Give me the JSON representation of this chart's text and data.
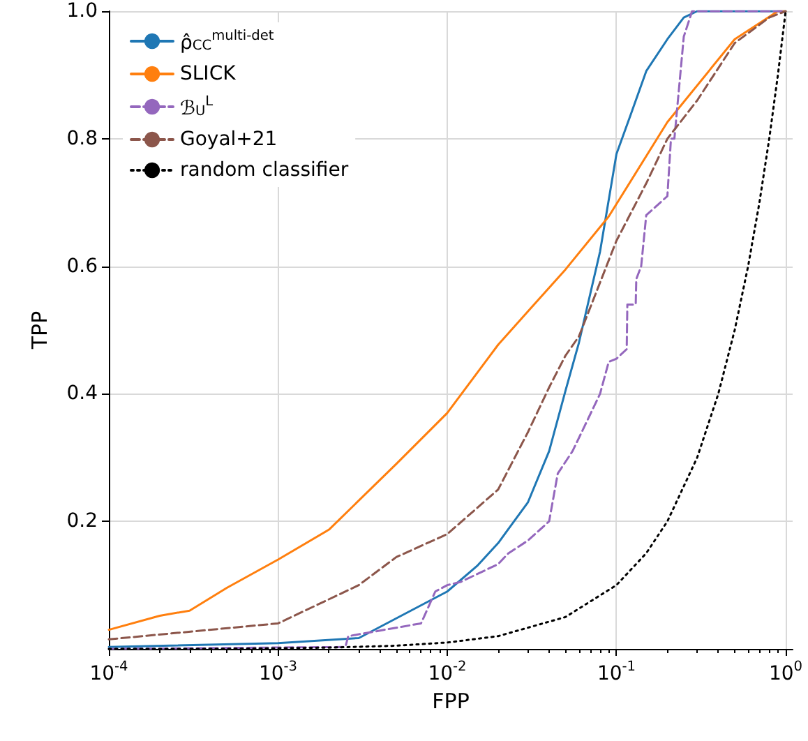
{
  "chart_data": {
    "type": "line",
    "xlabel": "FPP",
    "ylabel": "TPP",
    "log": "x",
    "grid": true,
    "legend": "top left",
    "marker": "none",
    "xlim": [
      0.0001,
      1.1
    ],
    "ylim": [
      0,
      1.0
    ],
    "xticks": [
      {
        "value": 0.0001,
        "label": "10$^{-4}$"
      },
      {
        "value": 0.001,
        "label": "10$^{-3}$"
      },
      {
        "value": 0.01,
        "label": "10$^{-2}$"
      },
      {
        "value": 0.1,
        "label": "10$^{-1}$"
      },
      {
        "value": 1,
        "label": "10$^{0}$"
      }
    ],
    "yticks": [
      0.2,
      0.4,
      0.6,
      0.8,
      {
        "value": 1,
        "label": "1.0"
      }
    ],
    "series": [
      {
        "name": "ρ̂$_{CC}$$^{multi-det}$",
        "color": "#1f77b4",
        "line_style": "solid",
        "x": [
          0.0001,
          0.001,
          0.003,
          0.01,
          0.015,
          0.02,
          0.03,
          0.04,
          0.05,
          0.06,
          0.08,
          0.1,
          0.12,
          0.15,
          0.2,
          0.25,
          0.3,
          1.0
        ],
        "values": [
          0.003,
          0.009,
          0.017,
          0.09,
          0.13,
          0.166,
          0.23,
          0.31,
          0.405,
          0.48,
          0.623,
          0.776,
          0.834,
          0.906,
          0.956,
          0.99,
          1.0,
          1.0
        ]
      },
      {
        "name": "SLICK",
        "color": "#ff7f0e",
        "line_style": "solid",
        "x": [
          0.0001,
          0.0002,
          0.0003,
          0.0005,
          0.001,
          0.002,
          0.005,
          0.01,
          0.02,
          0.05,
          0.09,
          0.2,
          0.5,
          0.9,
          1.0
        ],
        "values": [
          0.03,
          0.052,
          0.06,
          0.096,
          0.14,
          0.187,
          0.29,
          0.37,
          0.477,
          0.595,
          0.678,
          0.826,
          0.956,
          1.0,
          1.0
        ]
      },
      {
        "name": "ℬ$_{U}$$^{L}$",
        "color": "#9467bd",
        "line_style": "dashed",
        "x": [
          0.0001,
          0.0025,
          0.0026,
          0.007,
          0.0085,
          0.01,
          0.012,
          0.02,
          0.023,
          0.03,
          0.04,
          0.045,
          0.055,
          0.065,
          0.08,
          0.09,
          0.1,
          0.115,
          0.116,
          0.13,
          0.131,
          0.14,
          0.15,
          0.2,
          0.21,
          0.22,
          0.25,
          0.28,
          1.0
        ],
        "values": [
          0.0,
          0.003,
          0.02,
          0.04,
          0.09,
          0.1,
          0.105,
          0.133,
          0.15,
          0.17,
          0.2,
          0.275,
          0.31,
          0.35,
          0.4,
          0.45,
          0.455,
          0.47,
          0.54,
          0.54,
          0.58,
          0.6,
          0.68,
          0.71,
          0.8,
          0.8,
          0.96,
          1.0,
          1.0
        ]
      },
      {
        "name": "Goyal+21",
        "color": "#8c564b",
        "line_style": "dashed",
        "x": [
          0.0001,
          0.001,
          0.003,
          0.005,
          0.01,
          0.02,
          0.03,
          0.04,
          0.05,
          0.06,
          0.1,
          0.15,
          0.2,
          0.3,
          0.5,
          0.8,
          1.0
        ],
        "values": [
          0.015,
          0.04,
          0.1,
          0.144,
          0.18,
          0.25,
          0.34,
          0.41,
          0.46,
          0.49,
          0.64,
          0.73,
          0.8,
          0.86,
          0.95,
          0.99,
          1.0
        ]
      },
      {
        "name": "random classifier",
        "color": "#000000",
        "line_style": "dotted",
        "x": [
          0.0001,
          0.0002,
          0.0005,
          0.001,
          0.002,
          0.005,
          0.01,
          0.02,
          0.05,
          0.1,
          0.15,
          0.2,
          0.3,
          0.4,
          0.5,
          0.6,
          0.7,
          0.8,
          0.9,
          1.0
        ],
        "values": [
          0,
          0,
          0,
          0.001,
          0.002,
          0.005,
          0.01,
          0.02,
          0.05,
          0.1,
          0.15,
          0.2,
          0.3,
          0.4,
          0.5,
          0.6,
          0.7,
          0.8,
          0.9,
          1.0
        ]
      }
    ]
  }
}
